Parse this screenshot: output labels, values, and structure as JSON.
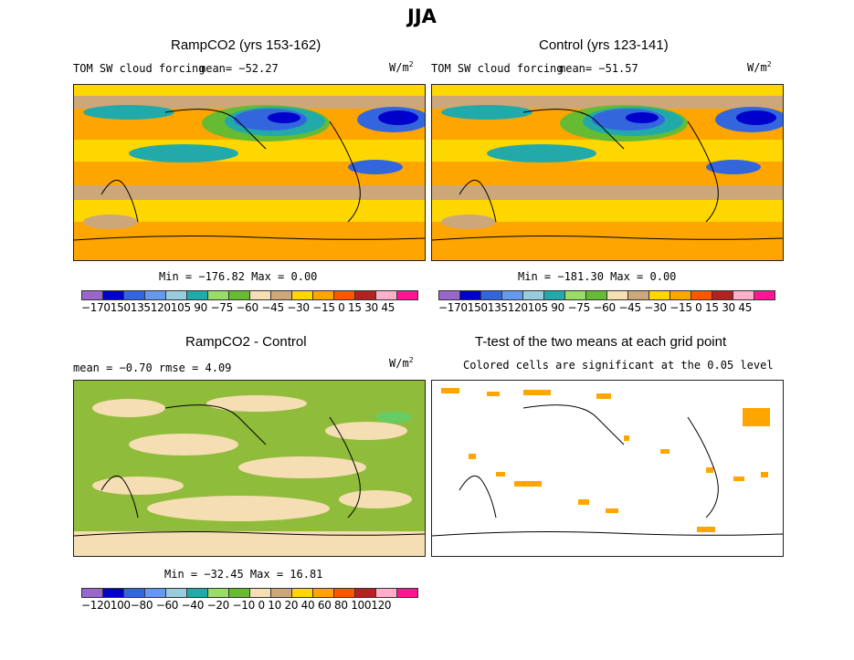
{
  "figure_title": "JJA",
  "panels": {
    "tl": {
      "title": "RampCO2 (yrs 153-162)",
      "field": "TOM SW cloud forcing",
      "mean": "mean= −52.27",
      "units": "W/m",
      "units_sup": "2",
      "minmax": "Min = −176.82 Max =    0.00"
    },
    "tr": {
      "title": "Control (yrs 123-141)",
      "field": "TOM SW cloud forcing",
      "mean": "mean= −51.57",
      "units": "W/m",
      "units_sup": "2",
      "minmax": "Min = −181.30 Max =    0.00"
    },
    "bl": {
      "title": "RampCO2 - Control",
      "stats": "mean =   −0.70     rmse =    4.09",
      "units": "W/m",
      "units_sup": "2",
      "minmax": "Min = −32.45 Max =   16.81"
    },
    "br": {
      "title": "T-test of the two means at each grid point",
      "subtitle": "Colored cells are significant at the 0.05 level"
    }
  },
  "colorbars": {
    "forcing": {
      "labels": "−170150135120105 90 −75 −60 −45 −30 −15  0  15  30  45"
    },
    "diff": {
      "labels": "−120100−80 −60 −40 −20 −10  0   10  20  40  60  80 100120"
    }
  },
  "palette": [
    "#9966cc",
    "#0000cc",
    "#3366dd",
    "#6699ee",
    "#99ccdd",
    "#22aaaa",
    "#99dd66",
    "#66bb33",
    "#f5deb3",
    "#cca77a",
    "#ffd700",
    "#ffa500",
    "#ff5500",
    "#b22222",
    "#ffb0c8",
    "#ff1493"
  ],
  "colors": {
    "ocean_bg": "#ffa500",
    "tropic_band": "#ffd700",
    "midlat_band": "#cca77a",
    "storm_green": "#66bb33",
    "cloud_blue": "#3366dd",
    "diff_green": "#8fbc3a",
    "diff_tan": "#f5deb3",
    "sig_orange": "#ffa500",
    "coast": "#000000"
  }
}
